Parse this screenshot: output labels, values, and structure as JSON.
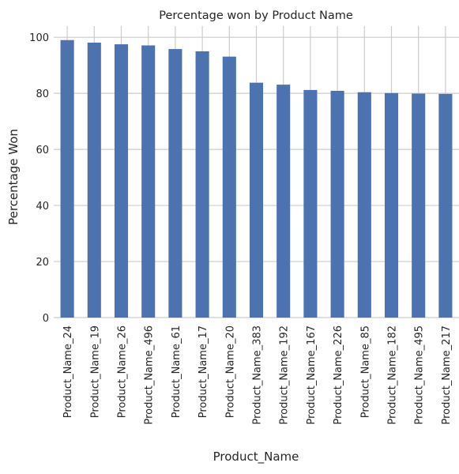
{
  "chart_data": {
    "type": "bar",
    "title": "Percentage won by Product Name",
    "xlabel": "Product_Name",
    "ylabel": "Percentage Won",
    "categories": [
      "Product_Name_24",
      "Product_Name_19",
      "Product_Name_26",
      "Product_Name_496",
      "Product_Name_61",
      "Product_Name_17",
      "Product_Name_20",
      "Product_Name_383",
      "Product_Name_192",
      "Product_Name_167",
      "Product_Name_226",
      "Product_Name_85",
      "Product_Name_182",
      "Product_Name_495",
      "Product_Name_217"
    ],
    "values": [
      99.0,
      98.1,
      97.5,
      97.1,
      95.8,
      95.0,
      93.1,
      83.8,
      83.1,
      81.2,
      80.9,
      80.4,
      80.1,
      79.9,
      79.8
    ],
    "ylim": [
      0,
      104
    ],
    "yticks": [
      0,
      20,
      40,
      60,
      80,
      100
    ],
    "grid": true,
    "colors": {
      "bar": "#4c72b0",
      "grid": "#cccccc",
      "background": "#ffffff"
    }
  }
}
